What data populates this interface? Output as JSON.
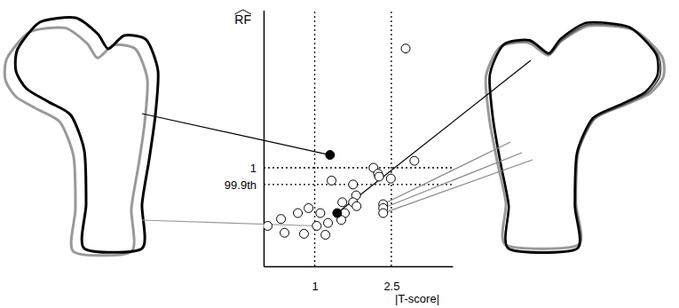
{
  "chart_data": {
    "type": "scatter",
    "x_label": "|T-score|",
    "y_label": "RF",
    "xlim": [
      0,
      3.7
    ],
    "ylim": [
      0,
      2.6
    ],
    "xticks": [
      1,
      2.5
    ],
    "yticks": [
      {
        "value": 0.83,
        "label": "99.9th"
      },
      1
    ],
    "grid": true,
    "series": [
      {
        "marker": "open",
        "color": "#000000",
        "x": [
          2.78,
          2.95,
          2.15,
          2.24,
          2.26,
          2.49,
          1.33,
          1.75,
          1.81,
          1.75,
          1.82,
          1.54,
          1.59,
          1.52,
          1.26,
          1.21,
          1.04,
          0.88,
          0.67,
          0.34,
          0.08,
          0.41,
          0.79,
          1.11,
          2.34,
          2.34,
          2.34
        ],
        "values": [
          2.21,
          1.07,
          1.0,
          0.94,
          0.91,
          0.89,
          0.87,
          0.83,
          0.72,
          0.65,
          0.61,
          0.65,
          0.54,
          0.47,
          0.44,
          0.32,
          0.41,
          0.59,
          0.54,
          0.48,
          0.41,
          0.34,
          0.33,
          0.54,
          0.63,
          0.59,
          0.54
        ]
      },
      {
        "marker": "filled",
        "color": "#000000",
        "x": [
          1.3,
          1.44
        ],
        "values": [
          1.13,
          0.54
        ]
      }
    ]
  }
}
